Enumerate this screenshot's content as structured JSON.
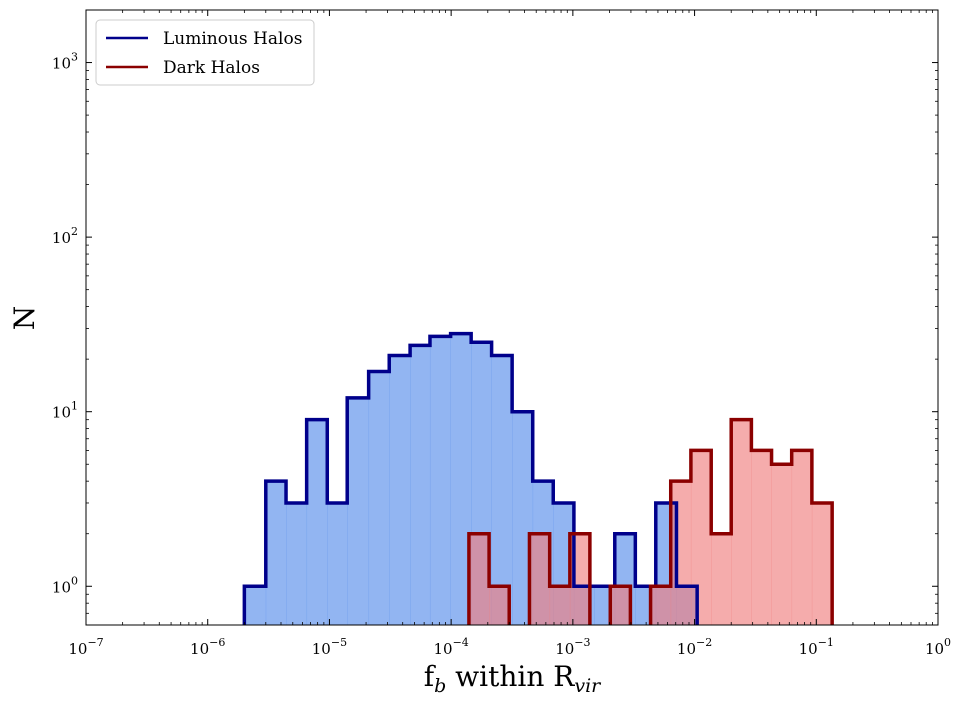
{
  "chart_data": {
    "type": "histogram",
    "xscale": "log",
    "yscale": "log",
    "xlim": [
      1e-07,
      1
    ],
    "ylim": [
      0.6,
      2000
    ],
    "xlabel": {
      "main": "f",
      "sub": "b",
      "mid": " within R",
      "sub2": "vir"
    },
    "ylabel": "N",
    "legend_position": "top-left",
    "x_ticks": [
      {
        "value": 1e-07,
        "base": "10",
        "exp": "−7"
      },
      {
        "value": 1e-06,
        "base": "10",
        "exp": "−6"
      },
      {
        "value": 1e-05,
        "base": "10",
        "exp": "−5"
      },
      {
        "value": 0.0001,
        "base": "10",
        "exp": "−4"
      },
      {
        "value": 0.001,
        "base": "10",
        "exp": "−3"
      },
      {
        "value": 0.01,
        "base": "10",
        "exp": "−2"
      },
      {
        "value": 0.1,
        "base": "10",
        "exp": "−1"
      },
      {
        "value": 1,
        "base": "10",
        "exp": "0"
      }
    ],
    "y_ticks": [
      {
        "value": 1,
        "base": "10",
        "exp": "0"
      },
      {
        "value": 10,
        "base": "10",
        "exp": "1"
      },
      {
        "value": 100,
        "base": "10",
        "exp": "2"
      },
      {
        "value": 1000,
        "base": "10",
        "exp": "3"
      }
    ],
    "series": [
      {
        "name": "Luminous Halos",
        "fill": "#6495ED",
        "edge": "#00008B",
        "bins": [
          {
            "x0": 2e-06,
            "x1": 3e-06,
            "count": 1
          },
          {
            "x0": 3e-06,
            "x1": 4.4e-06,
            "count": 4
          },
          {
            "x0": 4.4e-06,
            "x1": 6.5e-06,
            "count": 3
          },
          {
            "x0": 6.5e-06,
            "x1": 9.6e-06,
            "count": 9
          },
          {
            "x0": 9.6e-06,
            "x1": 1.4e-05,
            "count": 3
          },
          {
            "x0": 1.4e-05,
            "x1": 2.1e-05,
            "count": 12
          },
          {
            "x0": 2.1e-05,
            "x1": 3.1e-05,
            "count": 17
          },
          {
            "x0": 3.1e-05,
            "x1": 4.6e-05,
            "count": 21
          },
          {
            "x0": 4.6e-05,
            "x1": 6.7e-05,
            "count": 24
          },
          {
            "x0": 6.7e-05,
            "x1": 9.9e-05,
            "count": 27
          },
          {
            "x0": 9.9e-05,
            "x1": 0.000146,
            "count": 28
          },
          {
            "x0": 0.000146,
            "x1": 0.000215,
            "count": 25
          },
          {
            "x0": 0.000215,
            "x1": 0.000317,
            "count": 21
          },
          {
            "x0": 0.000317,
            "x1": 0.000468,
            "count": 10
          },
          {
            "x0": 0.000468,
            "x1": 0.00069,
            "count": 4
          },
          {
            "x0": 0.00069,
            "x1": 0.00102,
            "count": 3
          },
          {
            "x0": 0.00102,
            "x1": 0.0015,
            "count": 1
          },
          {
            "x0": 0.0015,
            "x1": 0.00221,
            "count": 1
          },
          {
            "x0": 0.00221,
            "x1": 0.00326,
            "count": 2
          },
          {
            "x0": 0.00326,
            "x1": 0.0048,
            "count": 1
          },
          {
            "x0": 0.0048,
            "x1": 0.0071,
            "count": 3
          },
          {
            "x0": 0.0071,
            "x1": 0.0105,
            "count": 1
          }
        ]
      },
      {
        "name": "Dark Halos",
        "fill": "#F08080",
        "edge": "#8B0000",
        "bins": [
          {
            "x0": 0.00014,
            "x1": 0.000205,
            "count": 2
          },
          {
            "x0": 0.000205,
            "x1": 0.0003,
            "count": 1
          },
          {
            "x0": 0.0003,
            "x1": 0.00044,
            "count": 0
          },
          {
            "x0": 0.00044,
            "x1": 0.000645,
            "count": 2
          },
          {
            "x0": 0.000645,
            "x1": 0.000945,
            "count": 1
          },
          {
            "x0": 0.000945,
            "x1": 0.00138,
            "count": 2
          },
          {
            "x0": 0.00138,
            "x1": 0.00203,
            "count": 0
          },
          {
            "x0": 0.00203,
            "x1": 0.00297,
            "count": 1
          },
          {
            "x0": 0.00297,
            "x1": 0.00435,
            "count": 0
          },
          {
            "x0": 0.00435,
            "x1": 0.00637,
            "count": 1
          },
          {
            "x0": 0.00637,
            "x1": 0.00933,
            "count": 4
          },
          {
            "x0": 0.00933,
            "x1": 0.0137,
            "count": 6
          },
          {
            "x0": 0.0137,
            "x1": 0.02,
            "count": 2
          },
          {
            "x0": 0.02,
            "x1": 0.0293,
            "count": 9
          },
          {
            "x0": 0.0293,
            "x1": 0.0429,
            "count": 6
          },
          {
            "x0": 0.0429,
            "x1": 0.0628,
            "count": 5
          },
          {
            "x0": 0.0628,
            "x1": 0.092,
            "count": 6
          },
          {
            "x0": 0.092,
            "x1": 0.135,
            "count": 3
          }
        ]
      }
    ]
  }
}
